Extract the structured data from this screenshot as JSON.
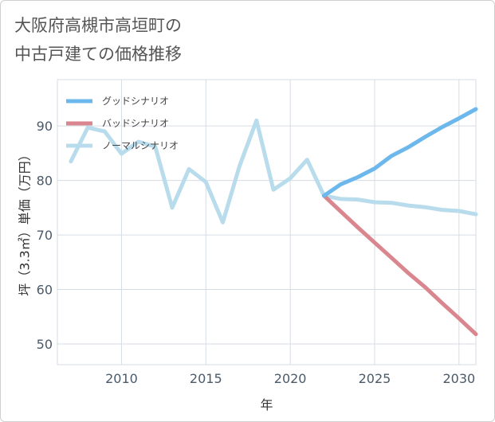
{
  "title": "大阪府高槻市高垣町の\n中古戸建ての価格推移",
  "chart_data": {
    "type": "line",
    "title": "大阪府高槻市高垣町の中古戸建ての価格推移",
    "xlabel": "年",
    "ylabel": "坪（3.3㎡）単価（万円）",
    "xlim": [
      2006.2,
      2031
    ],
    "ylim": [
      46.2,
      98.5
    ],
    "xticks": [
      2010,
      2015,
      2020,
      2025,
      2030
    ],
    "yticks": [
      50,
      60,
      70,
      80,
      90
    ],
    "grid": true,
    "legend_position": "top-left",
    "series": [
      {
        "name": "グッドシナリオ",
        "color": "#6cb8ec",
        "x": [
          2022,
          2023,
          2024,
          2025,
          2026,
          2027,
          2028,
          2029,
          2030,
          2031
        ],
        "y": [
          77.2,
          79.3,
          80.6,
          82.2,
          84.5,
          86.1,
          88.0,
          89.8,
          91.4,
          93.1
        ]
      },
      {
        "name": "バッドシナリオ",
        "color": "#d9868f",
        "x": [
          2022,
          2023,
          2024,
          2025,
          2026,
          2027,
          2028,
          2029,
          2030,
          2031
        ],
        "y": [
          77.2,
          74.3,
          71.4,
          68.6,
          65.8,
          63.0,
          60.4,
          57.5,
          54.7,
          51.8
        ]
      },
      {
        "name": "ノーマルシナリオ",
        "color": "#b8dcec",
        "x": [
          2007,
          2008,
          2009,
          2010,
          2011,
          2012,
          2013,
          2014,
          2015,
          2016,
          2017,
          2018,
          2019,
          2020,
          2021,
          2022,
          2023,
          2024,
          2025,
          2026,
          2027,
          2028,
          2029,
          2030,
          2031
        ],
        "y": [
          83.5,
          89.7,
          89.0,
          84.9,
          87.1,
          86.2,
          75.0,
          82.1,
          79.7,
          72.3,
          82.7,
          91.0,
          78.3,
          80.4,
          83.8,
          77.2,
          76.6,
          76.5,
          76.0,
          75.9,
          75.4,
          75.1,
          74.6,
          74.4,
          73.8
        ]
      }
    ]
  }
}
